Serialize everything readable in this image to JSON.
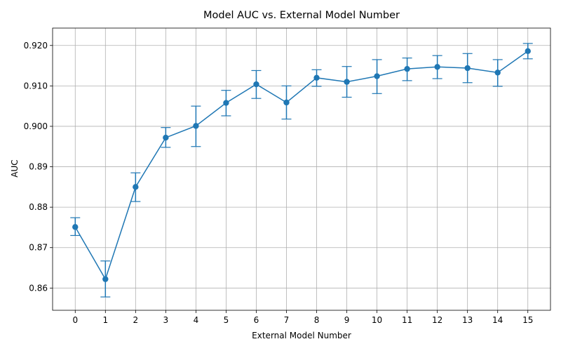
{
  "chart_data": {
    "type": "line",
    "title": "Model AUC vs. External Model Number",
    "xlabel": "External Model Number",
    "ylabel": "AUC",
    "x": [
      0,
      1,
      2,
      3,
      4,
      5,
      6,
      7,
      8,
      9,
      10,
      11,
      12,
      13,
      14,
      15
    ],
    "x_tick_labels": [
      "0",
      "1",
      "2",
      "3",
      "4",
      "5",
      "6",
      "7",
      "8",
      "9",
      "10",
      "11",
      "12",
      "13",
      "14",
      "15"
    ],
    "y_ticks": [
      0.86,
      0.87,
      0.88,
      0.89,
      0.9,
      0.91,
      0.92
    ],
    "y_tick_labels": [
      "0.86",
      "0.87",
      "0.88",
      "0.89",
      "0.900",
      "0.910",
      "0.920"
    ],
    "ylim": [
      0.8545,
      0.9243
    ],
    "xlim": [
      -0.75,
      15.75
    ],
    "grid": true,
    "series": [
      {
        "values": [
          0.8751,
          0.8622,
          0.885,
          0.8972,
          0.9001,
          0.9058,
          0.9104,
          0.9059,
          0.912,
          0.911,
          0.9124,
          0.9142,
          0.9147,
          0.9144,
          0.9133,
          0.9186
        ],
        "error_low": [
          0.873,
          0.8578,
          0.8814,
          0.8948,
          0.895,
          0.9026,
          0.9069,
          0.9018,
          0.9099,
          0.9072,
          0.9081,
          0.9113,
          0.9118,
          0.9108,
          0.9099,
          0.9167
        ],
        "error_high": [
          0.8774,
          0.8667,
          0.8885,
          0.8997,
          0.905,
          0.9089,
          0.9138,
          0.91,
          0.914,
          0.9148,
          0.9165,
          0.9169,
          0.9175,
          0.918,
          0.9165,
          0.9205
        ],
        "color": "#1f77b4"
      }
    ]
  }
}
